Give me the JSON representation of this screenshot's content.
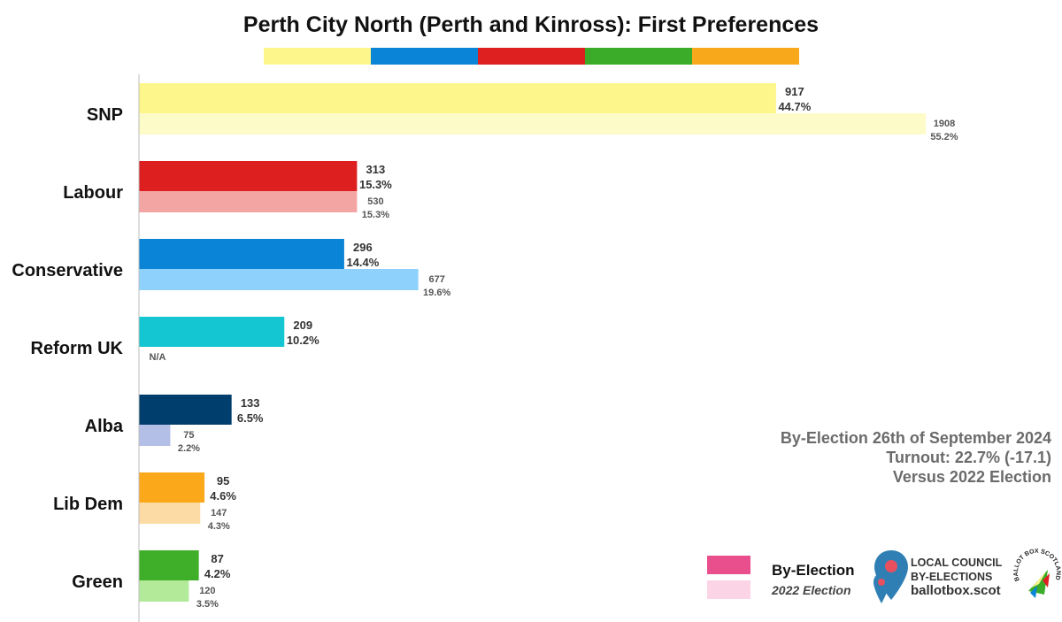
{
  "title": "Perth City North (Perth and Kinross): First Preferences",
  "stripe_colors": [
    "#fdf68a",
    "#0a84d6",
    "#df2020",
    "#3aac2a",
    "#f8a91b"
  ],
  "chart_data": {
    "type": "bar",
    "orientation": "horizontal",
    "title": "Perth City North (Perth and Kinross): First Preferences",
    "categories": [
      "SNP",
      "Labour",
      "Conservative",
      "Reform UK",
      "Alba",
      "Lib Dem",
      "Green"
    ],
    "series": [
      {
        "name": "By-Election",
        "values": [
          917,
          313,
          296,
          209,
          133,
          95,
          87
        ],
        "percent_labels": [
          "44.7%",
          "15.3%",
          "14.4%",
          "10.2%",
          "6.5%",
          "4.6%",
          "4.2%"
        ],
        "bar_percent": [
          44.7,
          15.3,
          14.4,
          10.2,
          6.5,
          4.6,
          4.2
        ],
        "colors": [
          "#fdf68a",
          "#dd1f1f",
          "#0a84d6",
          "#13c6d1",
          "#003e6d",
          "#fba91a",
          "#3fae29"
        ]
      },
      {
        "name": "2022 Election",
        "values": [
          1908,
          530,
          677,
          null,
          75,
          147,
          120
        ],
        "value_labels": [
          "1908",
          "530",
          "677",
          "N/A",
          "75",
          "147",
          "120"
        ],
        "percent_labels": [
          "55.2%",
          "15.3%",
          "19.6%",
          "",
          "2.2%",
          "4.3%",
          "3.5%"
        ],
        "bar_percent": [
          55.2,
          15.3,
          19.6,
          0,
          2.2,
          4.3,
          3.5
        ],
        "colors": [
          "#fdfbc8",
          "#f3a5a3",
          "#8ed1fd",
          "#ffffff",
          "#b3bfe6",
          "#fcdca4",
          "#b2ea9a"
        ]
      }
    ],
    "xlim": [
      0,
      55.2
    ],
    "grid": false,
    "legend": "bottom-right"
  },
  "info": {
    "line1": "By-Election 26th of September 2024",
    "line2": "Turnout: 22.7% (-17.1)",
    "line3": "Versus 2022 Election"
  },
  "legend": {
    "by_election_label": "By-Election",
    "by_election_color": "#e84f8c",
    "prev_label": "2022 Election",
    "prev_color": "#fbd4e5"
  },
  "brand": {
    "line1": "LOCAL COUNCIL",
    "line2": "BY-ELECTIONS",
    "site": "ballotbox.scot",
    "badge_text": "BALLOT BOX SCOTLAND",
    "pin_color": "#2f7fb5",
    "dot_color": "#e84f5f"
  }
}
